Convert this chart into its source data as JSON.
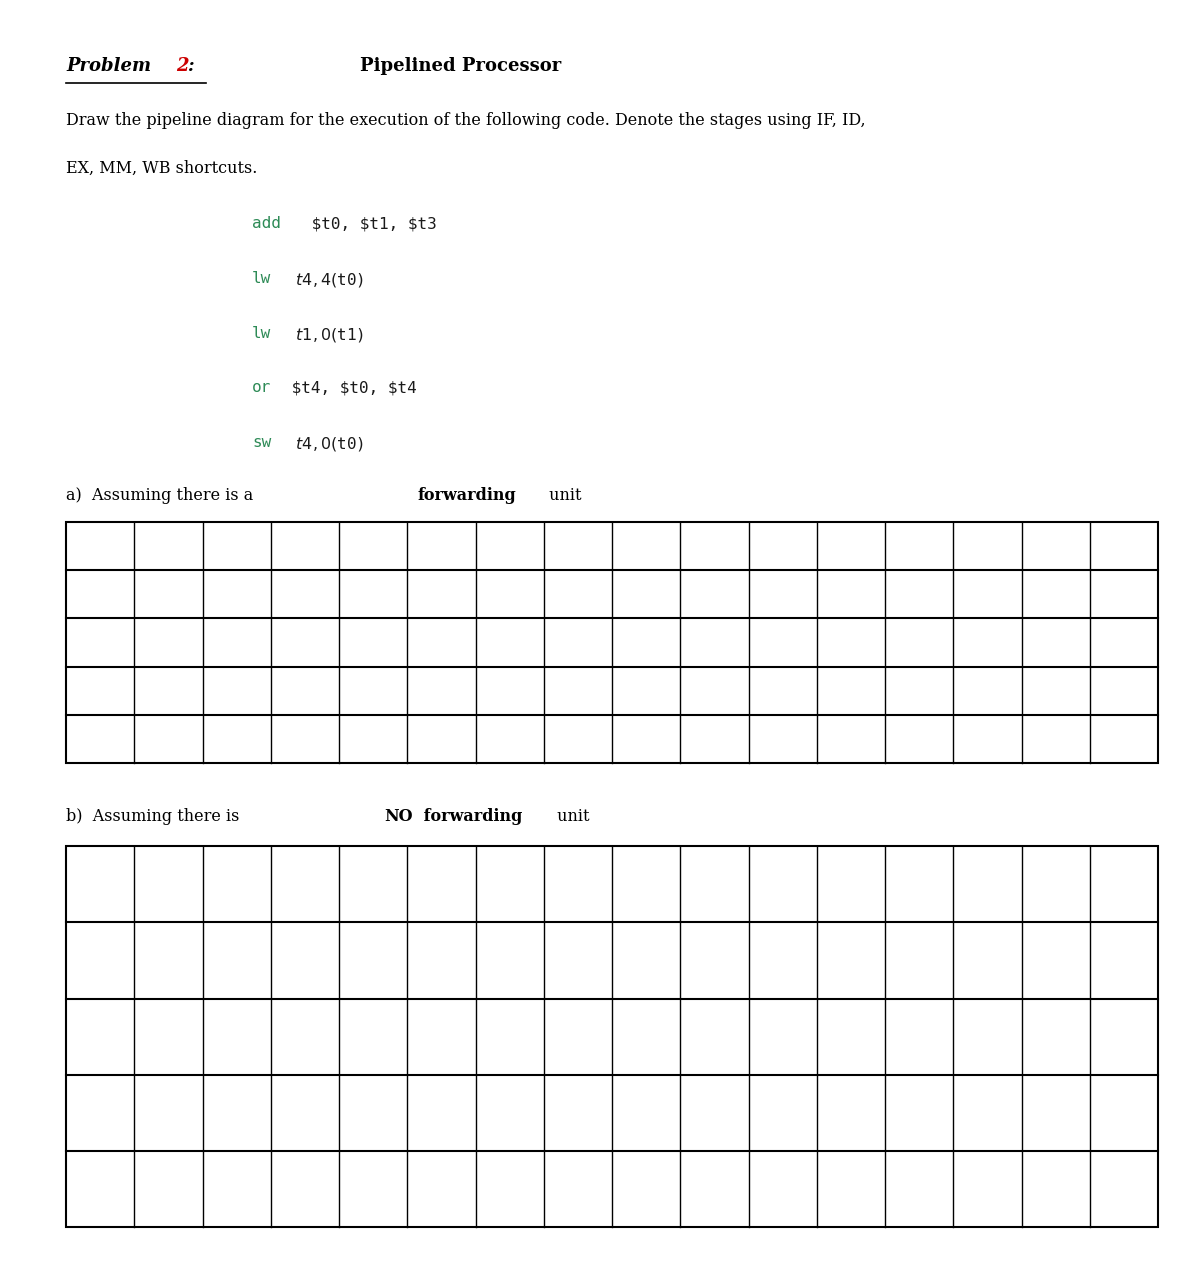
{
  "title_problem": "Problem 2:",
  "title_topic": "Pipelined Processor",
  "description_line1": "Draw the pipeline diagram for the execution of the following code. Denote the stages using IF, ID,",
  "description_line2": "EX, MM, WB shortcuts.",
  "code_lines": [
    [
      "add",
      " $t0, $t1, $t3"
    ],
    [
      "lw",
      " $t4, 4($t0)"
    ],
    [
      "lw",
      " $t1, 0($t1)"
    ],
    [
      "or",
      " $t4, $t0, $t4"
    ],
    [
      "sw",
      " $t4, 0 ($t0)"
    ]
  ],
  "part_a_normal": "a)  Assuming there is a ",
  "part_a_bold": "forwarding",
  "part_a_end": " unit",
  "part_b_normal": "b)  Assuming there is ",
  "part_b_bold_no": "NO",
  "part_b_bold_fwd": " forwarding",
  "part_b_end": " unit",
  "grid_rows_a": 5,
  "grid_cols_a": 16,
  "grid_rows_b": 5,
  "grid_cols_b": 16,
  "bg_color": "#ffffff",
  "grid_color": "#000000",
  "text_color": "#000000",
  "keyword_color": "#2e8b57",
  "title_red_color": "#cc0000",
  "fig_width": 12.0,
  "fig_height": 12.72
}
